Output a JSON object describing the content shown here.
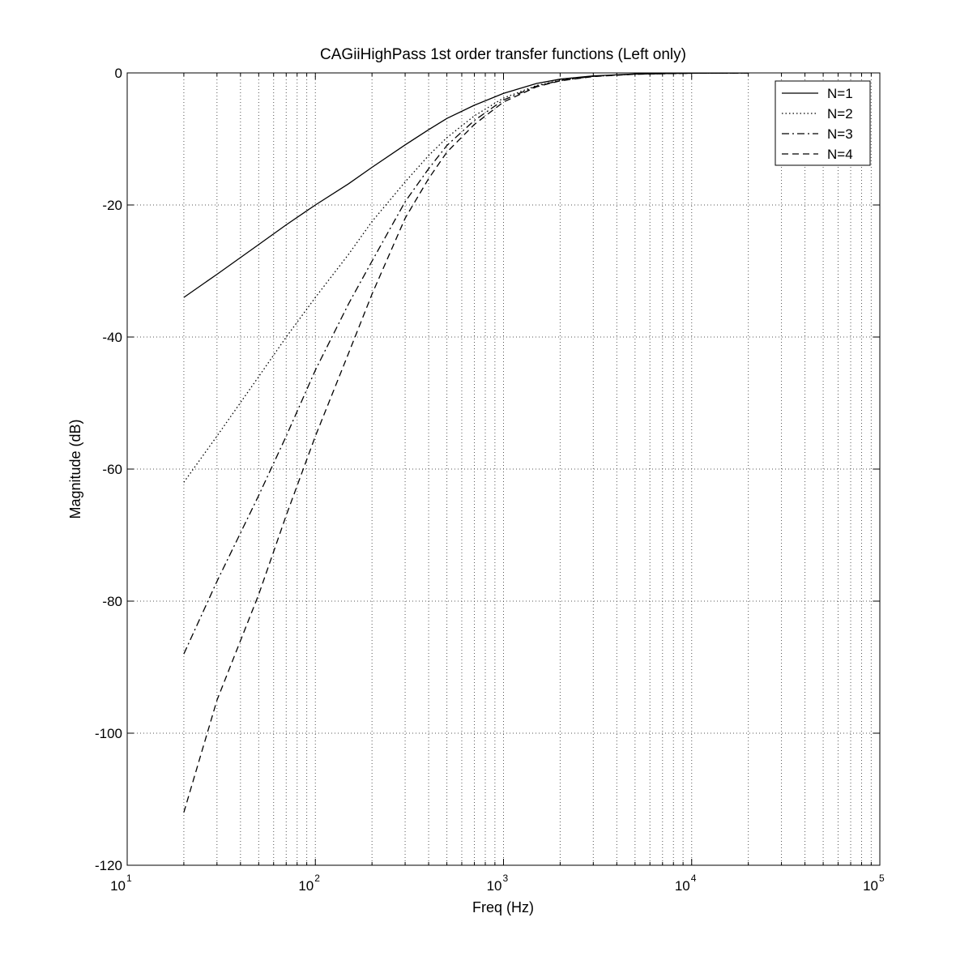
{
  "chart_data": {
    "type": "line",
    "title": "CAGiiHighPass 1st order transfer functions (Left only)",
    "xlabel": "Freq (Hz)",
    "ylabel": "Magnitude (dB)",
    "xscale": "log",
    "xlim": [
      10,
      100000
    ],
    "ylim": [
      -120,
      0
    ],
    "grid": true,
    "legend_position": "top-right",
    "x_ticks": [
      {
        "base": "10",
        "exp": "1"
      },
      {
        "base": "10",
        "exp": "2"
      },
      {
        "base": "10",
        "exp": "3"
      },
      {
        "base": "10",
        "exp": "4"
      },
      {
        "base": "10",
        "exp": "5"
      }
    ],
    "y_ticks": [
      "0",
      "-20",
      "-40",
      "-60",
      "-80",
      "-100",
      "-120"
    ],
    "y_tick_values": [
      0,
      -20,
      -40,
      -60,
      -80,
      -100,
      -120
    ],
    "series": [
      {
        "name": "N=1",
        "style": "solid",
        "x": [
          20,
          30,
          50,
          70,
          100,
          150,
          200,
          300,
          400,
          500,
          700,
          1000,
          1500,
          2000,
          3000,
          5000,
          10000,
          20000
        ],
        "y": [
          -34,
          -30.5,
          -26,
          -23,
          -20,
          -16.8,
          -14.3,
          -10.9,
          -8.6,
          -6.9,
          -4.9,
          -3.1,
          -1.6,
          -0.95,
          -0.44,
          -0.16,
          -0.04,
          -0.01
        ]
      },
      {
        "name": "N=2",
        "style": "dotted",
        "x": [
          20,
          30,
          50,
          70,
          100,
          150,
          200,
          300,
          400,
          500,
          700,
          1000,
          1500,
          2000,
          3000,
          5000,
          10000,
          20000
        ],
        "y": [
          -62,
          -55,
          -46,
          -40,
          -34,
          -27.5,
          -22.5,
          -16.5,
          -12.5,
          -9.8,
          -6.5,
          -3.8,
          -1.9,
          -1.1,
          -0.5,
          -0.18,
          -0.05,
          -0.01
        ]
      },
      {
        "name": "N=3",
        "style": "dashdot",
        "x": [
          20,
          30,
          50,
          70,
          100,
          150,
          200,
          300,
          400,
          500,
          700,
          1000,
          1500,
          2000,
          3000,
          5000,
          10000,
          20000
        ],
        "y": [
          -88,
          -77,
          -64,
          -55,
          -45,
          -35,
          -28.5,
          -19.5,
          -14.5,
          -11,
          -7.2,
          -4.1,
          -2,
          -1.15,
          -0.52,
          -0.19,
          -0.05,
          -0.01
        ]
      },
      {
        "name": "N=4",
        "style": "dashed",
        "x": [
          20,
          30,
          50,
          70,
          100,
          150,
          200,
          300,
          400,
          500,
          700,
          1000,
          1500,
          2000,
          3000,
          5000,
          10000,
          20000
        ],
        "y": [
          -112,
          -95,
          -79,
          -67,
          -55,
          -42.5,
          -33.5,
          -22,
          -16,
          -12,
          -7.8,
          -4.4,
          -2.1,
          -1.2,
          -0.55,
          -0.2,
          -0.05,
          -0.01
        ]
      }
    ]
  }
}
